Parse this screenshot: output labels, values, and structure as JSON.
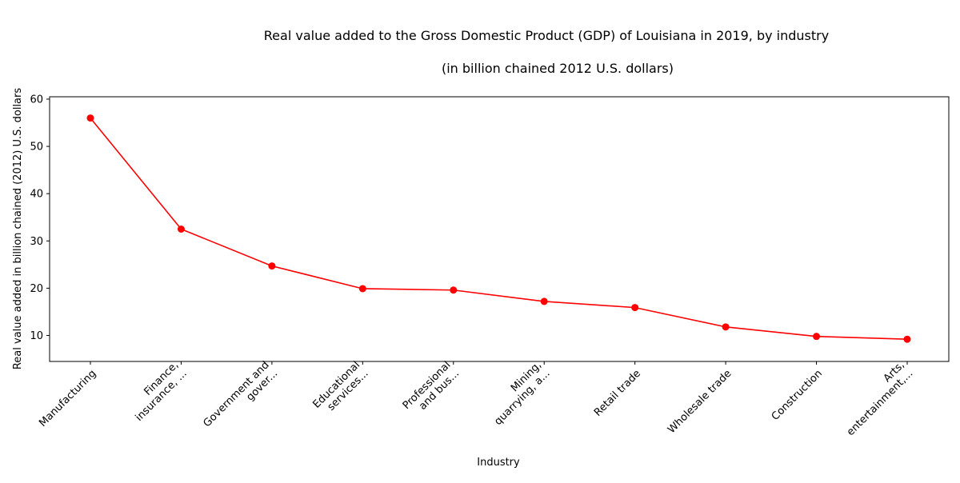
{
  "chart_data": {
    "type": "line",
    "title": "Real value added to the Gross Domestic Product (GDP) of Louisiana in 2019, by industry",
    "subtitle": "(in billion chained 2012 U.S. dollars)",
    "xlabel": "Industry",
    "ylabel": "Real value added in billion chained (2012) U.S. dollars",
    "categories": [
      [
        "Manufacturing"
      ],
      [
        "Finance,",
        "insurance, ..."
      ],
      [
        "Government and",
        "gover..."
      ],
      [
        "Educational",
        "services..."
      ],
      [
        "Professional",
        "and bus..."
      ],
      [
        "Mining,",
        "quarrying, a..."
      ],
      [
        "Retail trade"
      ],
      [
        "Wholesale trade"
      ],
      [
        "Construction"
      ],
      [
        "Arts,",
        "entertainment,..."
      ]
    ],
    "values": [
      56.0,
      32.5,
      24.7,
      19.9,
      19.6,
      17.2,
      15.9,
      11.8,
      9.8,
      9.2
    ],
    "ylim": [
      4.5,
      60.5
    ],
    "yticks": [
      10,
      20,
      30,
      40,
      50,
      60
    ],
    "grid": false,
    "legend": "none",
    "line_color": "#ff0000",
    "marker_color": "#ff0000"
  }
}
